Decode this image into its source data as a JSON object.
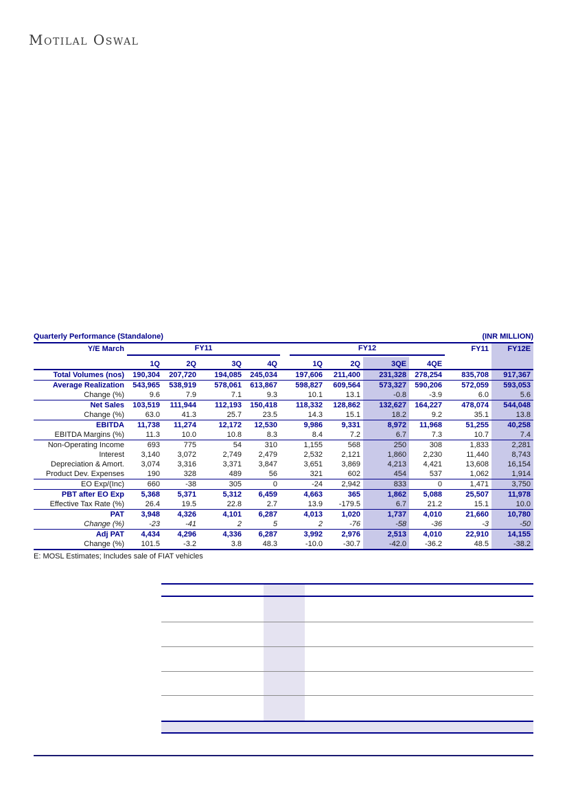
{
  "logo": {
    "text": "Motilal Oswal"
  },
  "table": {
    "title": "Quarterly Performance (Standalone)",
    "unit": "(INR MILLION)",
    "ye_march": "Y/E March",
    "groups": [
      {
        "label": "FY11"
      },
      {
        "label": "FY12"
      }
    ],
    "col_headers": [
      "1Q",
      "2Q",
      "3Q",
      "4Q",
      "1Q",
      "2Q",
      "3QE",
      "4QE"
    ],
    "annual_headers": [
      "FY11",
      "FY12E"
    ],
    "highlight_value_columns": [
      6,
      9
    ],
    "rows": [
      {
        "label": "Total Volumes (nos)",
        "style": "bold",
        "sep_after": true,
        "values": [
          "190,304",
          "207,720",
          "194,085",
          "245,034",
          "197,606",
          "211,400",
          "231,328",
          "278,254",
          "835,708",
          "917,367"
        ]
      },
      {
        "label": "Average Realization",
        "style": "bold",
        "sep_after": false,
        "values": [
          "543,965",
          "538,919",
          "578,061",
          "613,867",
          "598,827",
          "609,564",
          "573,327",
          "590,206",
          "572,059",
          "593,053"
        ]
      },
      {
        "label": "Change (%)",
        "style": "sub",
        "sep_after": true,
        "values": [
          "9.6",
          "7.9",
          "7.1",
          "9.3",
          "10.1",
          "13.1",
          "-0.8",
          "-3.9",
          "6.0",
          "5.6"
        ]
      },
      {
        "label": "Net Sales",
        "style": "bold",
        "sep_after": false,
        "values": [
          "103,519",
          "111,944",
          "112,193",
          "150,418",
          "118,332",
          "128,862",
          "132,627",
          "164,227",
          "478,074",
          "544,048"
        ]
      },
      {
        "label": "Change (%)",
        "style": "sub",
        "sep_after": true,
        "values": [
          "63.0",
          "41.3",
          "25.7",
          "23.5",
          "14.3",
          "15.1",
          "18.2",
          "9.2",
          "35.1",
          "13.8"
        ]
      },
      {
        "label": "EBITDA",
        "style": "bold",
        "sep_after": false,
        "values": [
          "11,738",
          "11,274",
          "12,172",
          "12,530",
          "9,986",
          "9,331",
          "8,972",
          "11,968",
          "51,255",
          "40,258"
        ]
      },
      {
        "label": "EBITDA Margins (%)",
        "style": "sub",
        "sep_after": true,
        "values": [
          "11.3",
          "10.0",
          "10.8",
          "8.3",
          "8.4",
          "7.2",
          "6.7",
          "7.3",
          "10.7",
          "7.4"
        ]
      },
      {
        "label": "Non-Operating Income",
        "style": "plain",
        "sep_after": false,
        "values": [
          "693",
          "775",
          "54",
          "310",
          "1,155",
          "568",
          "250",
          "308",
          "1,833",
          "2,281"
        ]
      },
      {
        "label": "Interest",
        "style": "plain",
        "sep_after": false,
        "values": [
          "3,140",
          "3,072",
          "2,749",
          "2,479",
          "2,532",
          "2,121",
          "1,860",
          "2,230",
          "11,440",
          "8,743"
        ]
      },
      {
        "label": "Depreciation & Amort.",
        "style": "plain",
        "sep_after": false,
        "values": [
          "3,074",
          "3,316",
          "3,371",
          "3,847",
          "3,651",
          "3,869",
          "4,213",
          "4,421",
          "13,608",
          "16,154"
        ]
      },
      {
        "label": "Product Dev. Expenses",
        "style": "plain",
        "sep_after": true,
        "values": [
          "190",
          "328",
          "489",
          "56",
          "321",
          "602",
          "454",
          "537",
          "1,062",
          "1,914"
        ]
      },
      {
        "label": "EO Exp/(Inc)",
        "style": "plain",
        "sep_after": true,
        "values": [
          "660",
          "-38",
          "305",
          "0",
          "-24",
          "2,942",
          "833",
          "0",
          "1,471",
          "3,750"
        ]
      },
      {
        "label": "PBT after EO Exp",
        "style": "bold",
        "sep_after": false,
        "values": [
          "5,368",
          "5,371",
          "5,312",
          "6,459",
          "4,663",
          "365",
          "1,862",
          "5,088",
          "25,507",
          "11,978"
        ]
      },
      {
        "label": "Effective Tax Rate (%)",
        "style": "sub",
        "sep_after": true,
        "values": [
          "26.4",
          "19.5",
          "22.8",
          "2.7",
          "13.9",
          "-179.5",
          "6.7",
          "21.2",
          "15.1",
          "10.0"
        ]
      },
      {
        "label": "PAT",
        "style": "bold",
        "sep_after": false,
        "values": [
          "3,948",
          "4,326",
          "4,101",
          "6,287",
          "4,013",
          "1,020",
          "1,737",
          "4,010",
          "21,660",
          "10,780"
        ]
      },
      {
        "label": "Change (%)",
        "style": "italic",
        "sep_after": true,
        "values": [
          "-23",
          "-41",
          "2",
          "5",
          "2",
          "-76",
          "-58",
          "-36",
          "-3",
          "-50"
        ]
      },
      {
        "label": "Adj PAT",
        "style": "bold",
        "sep_after": false,
        "values": [
          "4,434",
          "4,296",
          "4,336",
          "6,287",
          "3,992",
          "2,976",
          "2,513",
          "4,010",
          "22,910",
          "14,155"
        ]
      },
      {
        "label": "Change (%)",
        "style": "sub",
        "sep_after": false,
        "values": [
          "101.5",
          "-3.2",
          "3.8",
          "48.3",
          "-10.0",
          "-30.7",
          "-42.0",
          "-36.2",
          "48.5",
          "-38.2"
        ]
      }
    ],
    "footnote": "E: MOSL Estimates; Includes sale of FIAT vehicles"
  },
  "colors": {
    "accent_navy": "#00008B",
    "highlight_column": "#c9c9e9",
    "skeleton_band": "#e5e3f1",
    "gray_grid_line": "#8c8c8c"
  }
}
